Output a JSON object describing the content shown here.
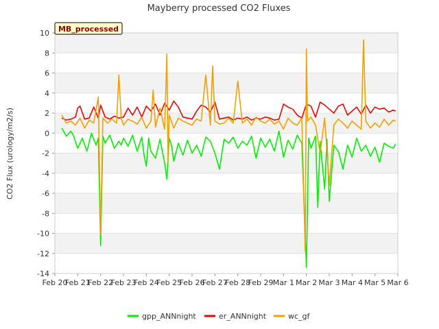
{
  "chart_data": {
    "type": "line",
    "title": "Mayberry processed CO2 Fluxes",
    "ylabel": "CO2 Flux (urology/m2/s)",
    "xlabel": "",
    "badge": "MB_processed",
    "ylim": [
      -14,
      10
    ],
    "yticks": [
      -14,
      -12,
      -10,
      -8,
      -6,
      -4,
      -2,
      0,
      2,
      4,
      6,
      8,
      10
    ],
    "xlim": [
      0,
      15
    ],
    "xticks": [
      {
        "v": 0,
        "label": "Feb 20"
      },
      {
        "v": 1,
        "label": "Feb 21"
      },
      {
        "v": 2,
        "label": "Feb 22"
      },
      {
        "v": 3,
        "label": "Feb 23"
      },
      {
        "v": 4,
        "label": "Feb 24"
      },
      {
        "v": 5,
        "label": "Feb 25"
      },
      {
        "v": 6,
        "label": "Feb 26"
      },
      {
        "v": 7,
        "label": "Feb 27"
      },
      {
        "v": 8,
        "label": "Feb 28"
      },
      {
        "v": 9,
        "label": "Feb 29"
      },
      {
        "v": 10,
        "label": "Mar 1"
      },
      {
        "v": 11,
        "label": "Mar 2"
      },
      {
        "v": 12,
        "label": "Mar 3"
      },
      {
        "v": 13,
        "label": "Mar 4"
      },
      {
        "v": 14,
        "label": "Mar 5"
      },
      {
        "v": 15,
        "label": "Mar 6"
      }
    ],
    "grid": true,
    "legend_position": "bottom",
    "series": [
      {
        "name": "gpp_ANNnight",
        "color": "#00ee00",
        "x": [
          0.3,
          0.5,
          0.7,
          0.8,
          1.0,
          1.2,
          1.4,
          1.6,
          1.8,
          1.9,
          2.0,
          2.1,
          2.2,
          2.4,
          2.6,
          2.8,
          2.9,
          3.0,
          3.2,
          3.4,
          3.6,
          3.8,
          3.9,
          4.0,
          4.1,
          4.2,
          4.4,
          4.6,
          4.8,
          4.9,
          5.0,
          5.1,
          5.2,
          5.4,
          5.6,
          5.8,
          6.0,
          6.2,
          6.4,
          6.6,
          6.8,
          7.0,
          7.2,
          7.4,
          7.6,
          7.8,
          8.0,
          8.2,
          8.4,
          8.6,
          8.8,
          9.0,
          9.2,
          9.4,
          9.6,
          9.8,
          10.0,
          10.2,
          10.4,
          10.6,
          10.8,
          11.0,
          11.1,
          11.2,
          11.4,
          11.5,
          11.6,
          11.8,
          11.9,
          12.0,
          12.2,
          12.4,
          12.6,
          12.8,
          13.0,
          13.2,
          13.4,
          13.6,
          13.8,
          14.0,
          14.2,
          14.4,
          14.6,
          14.8,
          14.9
        ],
        "y": [
          0.5,
          -0.3,
          0.2,
          -0.2,
          -1.5,
          -0.5,
          -1.8,
          0.0,
          -1.2,
          -0.5,
          -11.2,
          -0.3,
          -1.0,
          -0.2,
          -1.5,
          -0.8,
          -1.2,
          -0.5,
          -1.3,
          -0.2,
          -1.8,
          -0.4,
          -2.2,
          -3.3,
          -0.5,
          -1.8,
          -2.5,
          -0.6,
          -3.0,
          -4.6,
          -0.5,
          -1.2,
          -2.8,
          -1.0,
          -2.2,
          -0.7,
          -2.0,
          -1.2,
          -2.3,
          -0.4,
          -0.8,
          -2.0,
          -3.6,
          -0.6,
          -1.0,
          -0.4,
          -1.5,
          -0.8,
          -1.2,
          -0.3,
          -2.5,
          -0.5,
          -1.4,
          -0.6,
          -1.8,
          0.2,
          -2.4,
          -0.7,
          -1.6,
          -0.2,
          -1.0,
          -13.4,
          -0.5,
          -1.5,
          -0.3,
          -7.4,
          -0.8,
          -5.6,
          -0.6,
          -6.8,
          -1.2,
          -1.8,
          -3.6,
          -1.2,
          -2.4,
          -0.5,
          -1.8,
          -1.2,
          -2.3,
          -1.4,
          -2.9,
          -1.0,
          -1.3,
          -1.5,
          -1.1
        ]
      },
      {
        "name": "er_ANNnight",
        "color": "#ee0000",
        "x": [
          0.3,
          0.5,
          0.7,
          0.9,
          1.0,
          1.1,
          1.3,
          1.5,
          1.7,
          1.9,
          2.0,
          2.2,
          2.4,
          2.6,
          2.8,
          3.0,
          3.2,
          3.4,
          3.6,
          3.8,
          4.0,
          4.2,
          4.4,
          4.6,
          4.8,
          5.0,
          5.2,
          5.4,
          5.6,
          5.8,
          6.0,
          6.2,
          6.4,
          6.6,
          6.8,
          7.0,
          7.2,
          7.4,
          7.6,
          7.8,
          8.0,
          8.2,
          8.4,
          8.6,
          8.8,
          9.0,
          9.2,
          9.4,
          9.6,
          9.8,
          10.0,
          10.2,
          10.4,
          10.6,
          10.8,
          11.0,
          11.2,
          11.4,
          11.6,
          11.8,
          12.0,
          12.2,
          12.4,
          12.6,
          12.8,
          13.0,
          13.2,
          13.4,
          13.6,
          13.8,
          14.0,
          14.2,
          14.4,
          14.6,
          14.8,
          14.9
        ],
        "y": [
          1.5,
          1.3,
          1.4,
          1.6,
          2.5,
          2.7,
          1.4,
          1.5,
          2.6,
          1.5,
          2.8,
          1.6,
          1.4,
          1.7,
          1.5,
          1.6,
          2.5,
          1.8,
          2.6,
          1.6,
          2.7,
          2.2,
          2.9,
          1.8,
          3.0,
          2.3,
          3.2,
          2.6,
          1.6,
          1.5,
          1.4,
          2.2,
          2.8,
          2.6,
          2.1,
          3.1,
          1.4,
          1.5,
          1.6,
          1.3,
          1.5,
          1.4,
          1.6,
          1.3,
          1.5,
          1.4,
          1.6,
          1.5,
          1.3,
          1.4,
          2.9,
          2.6,
          2.4,
          1.8,
          1.5,
          2.9,
          2.7,
          1.6,
          3.1,
          2.8,
          2.4,
          2.0,
          2.7,
          2.9,
          1.8,
          2.2,
          2.6,
          1.9,
          2.8,
          2.0,
          2.6,
          2.4,
          2.5,
          2.1,
          2.3,
          2.2
        ]
      },
      {
        "name": "wc_gf",
        "color": "#f0a000",
        "x": [
          0.3,
          0.5,
          0.7,
          0.9,
          1.1,
          1.3,
          1.5,
          1.7,
          1.9,
          2.0,
          2.1,
          2.3,
          2.5,
          2.7,
          2.8,
          2.9,
          3.0,
          3.2,
          3.4,
          3.6,
          3.8,
          4.0,
          4.2,
          4.3,
          4.4,
          4.6,
          4.8,
          4.9,
          4.95,
          5.0,
          5.2,
          5.4,
          5.6,
          5.8,
          6.0,
          6.2,
          6.4,
          6.6,
          6.8,
          6.9,
          7.0,
          7.2,
          7.4,
          7.6,
          7.8,
          8.0,
          8.2,
          8.4,
          8.6,
          8.8,
          9.0,
          9.2,
          9.4,
          9.6,
          9.8,
          10.0,
          10.2,
          10.4,
          10.6,
          10.8,
          10.95,
          11.0,
          11.05,
          11.2,
          11.4,
          11.6,
          11.8,
          12.0,
          12.2,
          12.4,
          12.6,
          12.8,
          13.0,
          13.2,
          13.4,
          13.5,
          13.6,
          13.8,
          14.0,
          14.2,
          14.4,
          14.6,
          14.8,
          14.9
        ],
        "y": [
          1.8,
          1.0,
          1.2,
          0.8,
          1.5,
          0.5,
          1.3,
          1.0,
          3.6,
          -10.1,
          1.5,
          1.0,
          1.4,
          1.0,
          5.8,
          1.5,
          0.8,
          1.4,
          1.2,
          0.9,
          1.6,
          0.5,
          1.2,
          4.3,
          0.6,
          2.5,
          0.4,
          7.9,
          -3.0,
          1.8,
          0.5,
          1.5,
          1.2,
          1.0,
          0.8,
          1.4,
          1.2,
          5.8,
          0.8,
          6.7,
          1.2,
          0.9,
          1.0,
          1.5,
          1.0,
          5.2,
          1.0,
          1.4,
          0.8,
          1.6,
          1.2,
          1.0,
          1.4,
          0.9,
          1.2,
          0.4,
          1.5,
          1.0,
          0.8,
          1.5,
          -11.8,
          8.4,
          1.2,
          1.6,
          0.8,
          -2.0,
          1.5,
          -5.2,
          0.8,
          1.4,
          1.0,
          0.5,
          1.2,
          0.8,
          0.4,
          9.3,
          1.2,
          0.5,
          1.0,
          0.6,
          1.4,
          0.8,
          1.3,
          1.2
        ]
      }
    ]
  }
}
